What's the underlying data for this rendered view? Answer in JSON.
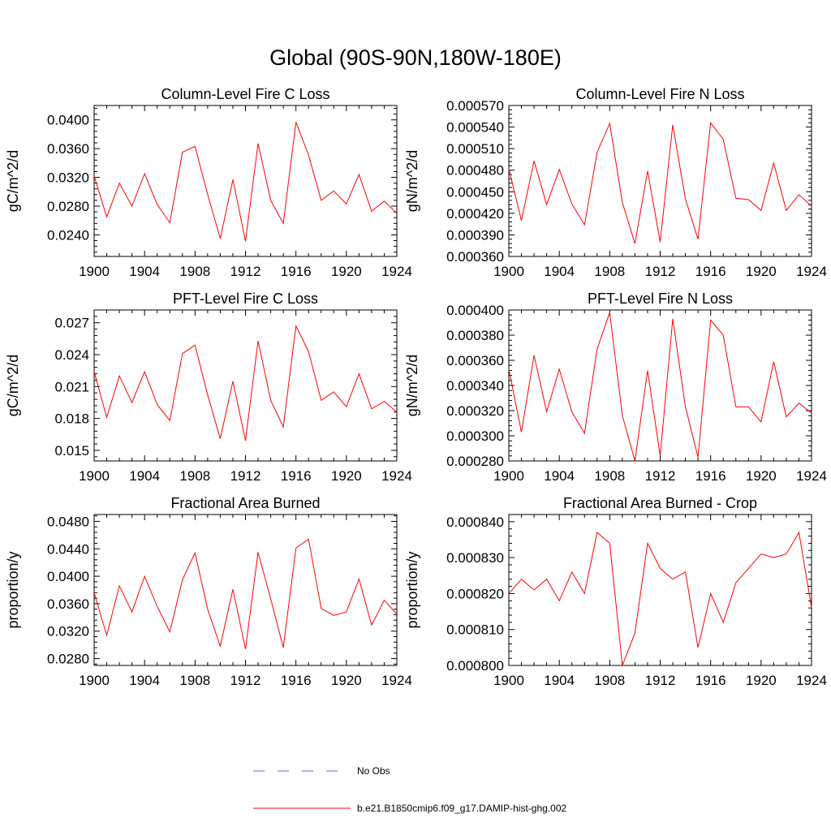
{
  "title": "Global (90S-90N,180W-180E)",
  "legend": {
    "entries": [
      {
        "label": "No Obs",
        "color": "#5b6fd6",
        "style": "dashed"
      },
      {
        "label": "b.e21.B1850cmip6.f09_g17.DAMIP-hist-ghg.002",
        "color": "#ff0000",
        "style": "solid"
      }
    ]
  },
  "chart_data": [
    {
      "type": "line",
      "title": "Column-Level Fire C Loss",
      "xlabel": "",
      "ylabel": "gC/m^2/d",
      "xlim": [
        1900,
        1924
      ],
      "ylim": [
        0.021,
        0.042
      ],
      "xticks": [
        "1900",
        "1904",
        "1908",
        "1912",
        "1916",
        "1920",
        "1924"
      ],
      "yticks": [
        "0.0240",
        "0.0280",
        "0.0320",
        "0.0360",
        "0.0400"
      ],
      "x": [
        1900,
        1901,
        1902,
        1903,
        1904,
        1905,
        1906,
        1907,
        1908,
        1909,
        1910,
        1911,
        1912,
        1913,
        1914,
        1915,
        1916,
        1917,
        1918,
        1919,
        1920,
        1921,
        1922,
        1923,
        1924
      ],
      "series": [
        {
          "color": "#ff0000",
          "values": [
            0.0322,
            0.0265,
            0.0312,
            0.028,
            0.0325,
            0.0282,
            0.0257,
            0.0355,
            0.0363,
            0.0296,
            0.0235,
            0.0317,
            0.0231,
            0.0367,
            0.0288,
            0.0256,
            0.0397,
            0.0351,
            0.0288,
            0.0301,
            0.0283,
            0.0324,
            0.0273,
            0.0287,
            0.027
          ]
        }
      ]
    },
    {
      "type": "line",
      "title": "Column-Level Fire N Loss",
      "xlabel": "",
      "ylabel": "gN/m^2/d",
      "xlim": [
        1900,
        1924
      ],
      "ylim": [
        0.00036,
        0.00057
      ],
      "xticks": [
        "1900",
        "1904",
        "1908",
        "1912",
        "1916",
        "1920",
        "1924"
      ],
      "yticks": [
        "0.000360",
        "0.000390",
        "0.000420",
        "0.000450",
        "0.000480",
        "0.000510",
        "0.000540",
        "0.000570"
      ],
      "x": [
        1900,
        1901,
        1902,
        1903,
        1904,
        1905,
        1906,
        1907,
        1908,
        1909,
        1910,
        1911,
        1912,
        1913,
        1914,
        1915,
        1916,
        1917,
        1918,
        1919,
        1920,
        1921,
        1922,
        1923,
        1924
      ],
      "series": [
        {
          "color": "#ff0000",
          "values": [
            0.000482,
            0.00041,
            0.000493,
            0.000432,
            0.000481,
            0.000433,
            0.000404,
            0.000505,
            0.000545,
            0.000435,
            0.000378,
            0.000479,
            0.00038,
            0.000543,
            0.00044,
            0.000384,
            0.000546,
            0.000523,
            0.000441,
            0.000439,
            0.000424,
            0.00049,
            0.000424,
            0.000446,
            0.00043
          ]
        }
      ]
    },
    {
      "type": "line",
      "title": "PFT-Level Fire C Loss",
      "xlabel": "",
      "ylabel": "gC/m^2/d",
      "xlim": [
        1900,
        1924
      ],
      "ylim": [
        0.014,
        0.0282
      ],
      "xticks": [
        "1900",
        "1904",
        "1908",
        "1912",
        "1916",
        "1920",
        "1924"
      ],
      "yticks": [
        "0.015",
        "0.018",
        "0.021",
        "0.024",
        "0.027"
      ],
      "x": [
        1900,
        1901,
        1902,
        1903,
        1904,
        1905,
        1906,
        1907,
        1908,
        1909,
        1910,
        1911,
        1912,
        1913,
        1914,
        1915,
        1916,
        1917,
        1918,
        1919,
        1920,
        1921,
        1922,
        1923,
        1924
      ],
      "series": [
        {
          "color": "#ff0000",
          "values": [
            0.0224,
            0.0181,
            0.022,
            0.0195,
            0.0224,
            0.0193,
            0.0178,
            0.0241,
            0.0249,
            0.0202,
            0.0161,
            0.0215,
            0.0159,
            0.0253,
            0.0197,
            0.0172,
            0.0267,
            0.0243,
            0.0197,
            0.0205,
            0.0191,
            0.0222,
            0.0189,
            0.0196,
            0.0186
          ]
        }
      ]
    },
    {
      "type": "line",
      "title": "PFT-Level Fire N Loss",
      "xlabel": "",
      "ylabel": "gN/m^2/d",
      "xlim": [
        1900,
        1924
      ],
      "ylim": [
        0.00028,
        0.0004
      ],
      "xticks": [
        "1900",
        "1904",
        "1908",
        "1912",
        "1916",
        "1920",
        "1924"
      ],
      "yticks": [
        "0.000280",
        "0.000300",
        "0.000320",
        "0.000340",
        "0.000360",
        "0.000380",
        "0.000400"
      ],
      "x": [
        1900,
        1901,
        1902,
        1903,
        1904,
        1905,
        1906,
        1907,
        1908,
        1909,
        1910,
        1911,
        1912,
        1913,
        1914,
        1915,
        1916,
        1917,
        1918,
        1919,
        1920,
        1921,
        1922,
        1923,
        1924
      ],
      "series": [
        {
          "color": "#ff0000",
          "values": [
            0.000353,
            0.000303,
            0.000364,
            0.000319,
            0.000353,
            0.000319,
            0.000302,
            0.000369,
            0.000398,
            0.000316,
            0.00028,
            0.000352,
            0.000284,
            0.000393,
            0.000323,
            0.000283,
            0.000392,
            0.00038,
            0.000323,
            0.000323,
            0.000311,
            0.000359,
            0.000315,
            0.000326,
            0.000318
          ]
        }
      ]
    },
    {
      "type": "line",
      "title": "Fractional Area Burned",
      "xlabel": "",
      "ylabel": "proportion/y",
      "xlim": [
        1900,
        1924
      ],
      "ylim": [
        0.027,
        0.049
      ],
      "xticks": [
        "1900",
        "1904",
        "1908",
        "1912",
        "1916",
        "1920",
        "1924"
      ],
      "yticks": [
        "0.0280",
        "0.0320",
        "0.0360",
        "0.0400",
        "0.0440",
        "0.0480"
      ],
      "x": [
        1900,
        1901,
        1902,
        1903,
        1904,
        1905,
        1906,
        1907,
        1908,
        1909,
        1910,
        1911,
        1912,
        1913,
        1914,
        1915,
        1916,
        1917,
        1918,
        1919,
        1920,
        1921,
        1922,
        1923,
        1924
      ],
      "series": [
        {
          "color": "#ff0000",
          "values": [
            0.0376,
            0.0314,
            0.0386,
            0.0348,
            0.04,
            0.0356,
            0.0319,
            0.0395,
            0.0434,
            0.0352,
            0.0298,
            0.0381,
            0.0294,
            0.0435,
            0.0367,
            0.0296,
            0.0441,
            0.0454,
            0.0353,
            0.0343,
            0.0348,
            0.0396,
            0.0329,
            0.0365,
            0.0345
          ]
        }
      ]
    },
    {
      "type": "line",
      "title": "Fractional Area Burned - Crop",
      "xlabel": "",
      "ylabel": "proportion/y",
      "xlim": [
        1900,
        1924
      ],
      "ylim": [
        0.0008,
        0.000842
      ],
      "xticks": [
        "1900",
        "1904",
        "1908",
        "1912",
        "1916",
        "1920",
        "1924"
      ],
      "yticks": [
        "0.000800",
        "0.000810",
        "0.000820",
        "0.000830",
        "0.000840"
      ],
      "x": [
        1900,
        1901,
        1902,
        1903,
        1904,
        1905,
        1906,
        1907,
        1908,
        1909,
        1910,
        1911,
        1912,
        1913,
        1914,
        1915,
        1916,
        1917,
        1918,
        1919,
        1920,
        1921,
        1922,
        1923,
        1924
      ],
      "series": [
        {
          "color": "#ff0000",
          "values": [
            0.00082,
            0.000824,
            0.000821,
            0.000824,
            0.000818,
            0.000826,
            0.00082,
            0.000837,
            0.000834,
            0.0008,
            0.000809,
            0.000834,
            0.000827,
            0.000824,
            0.000826,
            0.000805,
            0.00082,
            0.000812,
            0.000823,
            0.000827,
            0.000831,
            0.00083,
            0.000831,
            0.000837,
            0.000816
          ]
        }
      ]
    }
  ]
}
